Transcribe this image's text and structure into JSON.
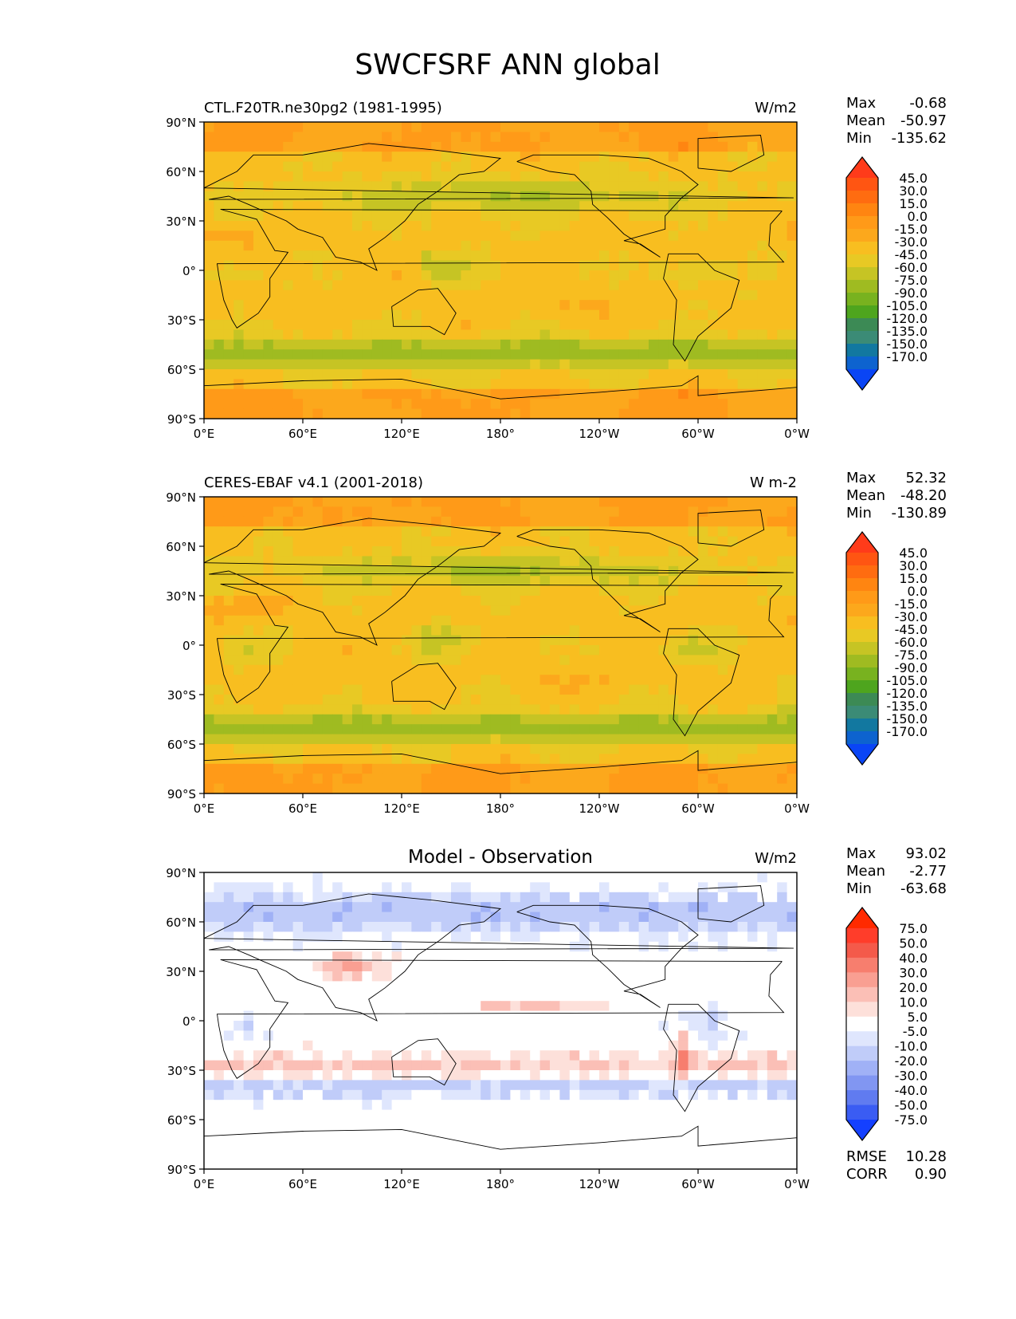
{
  "title": "SWCFSRF ANN global",
  "panels": [
    {
      "id": "model",
      "left_title": "CTL.F20TR.ne30pg2 (1981-1995)",
      "center_title": "",
      "units": "W/m2",
      "stats": [
        {
          "label": "Max",
          "value": "-0.68"
        },
        {
          "label": "Mean",
          "value": "-50.97"
        },
        {
          "label": "Min",
          "value": "-135.62"
        }
      ],
      "colorbar_levels": [
        "45.0",
        "30.0",
        "15.0",
        "0.0",
        "-15.0",
        "-30.0",
        "-45.0",
        "-60.0",
        "-75.0",
        "-90.0",
        "-105.0",
        "-120.0",
        "-135.0",
        "-150.0",
        "-170.0"
      ],
      "colorbar_colors": [
        "#ff3b1a",
        "#ff5512",
        "#ff6c10",
        "#ff8511",
        "#ff9a18",
        "#fca81c",
        "#f8be20",
        "#e8c924",
        "#c6c424",
        "#9fbb21",
        "#78b21f",
        "#4ea51e",
        "#3c8a55",
        "#3b8b76",
        "#1278a0",
        "#0d63cf",
        "#0a45f5"
      ],
      "texture": "abs"
    },
    {
      "id": "obs",
      "left_title": "CERES-EBAF v4.1 (2001-2018)",
      "center_title": "",
      "units": "W m-2",
      "stats": [
        {
          "label": "Max",
          "value": "52.32"
        },
        {
          "label": "Mean",
          "value": "-48.20"
        },
        {
          "label": "Min",
          "value": "-130.89"
        }
      ],
      "colorbar_levels": [
        "45.0",
        "30.0",
        "15.0",
        "0.0",
        "-15.0",
        "-30.0",
        "-45.0",
        "-60.0",
        "-75.0",
        "-90.0",
        "-105.0",
        "-120.0",
        "-135.0",
        "-150.0",
        "-170.0"
      ],
      "colorbar_colors": [
        "#ff3b1a",
        "#ff5512",
        "#ff6c10",
        "#ff8511",
        "#ff9a18",
        "#fca81c",
        "#f8be20",
        "#e8c924",
        "#c6c424",
        "#9fbb21",
        "#78b21f",
        "#4ea51e",
        "#3c8a55",
        "#3b8b76",
        "#1278a0",
        "#0d63cf",
        "#0a45f5"
      ],
      "texture": "abs"
    },
    {
      "id": "diff",
      "left_title": "",
      "center_title": "Model - Observation",
      "units": "W/m2",
      "stats": [
        {
          "label": "Max",
          "value": "93.02"
        },
        {
          "label": "Mean",
          "value": "-2.77"
        },
        {
          "label": "Min",
          "value": "-63.68"
        }
      ],
      "colorbar_levels": [
        "75.0",
        "50.0",
        "40.0",
        "30.0",
        "20.0",
        "10.0",
        "5.0",
        "-5.0",
        "-10.0",
        "-20.0",
        "-30.0",
        "-40.0",
        "-50.0",
        "-75.0"
      ],
      "colorbar_colors": [
        "#ff2a00",
        "#ff3d2a",
        "#f45a4a",
        "#f77e6e",
        "#f99f92",
        "#fbbfb6",
        "#fde0da",
        "#ffffff",
        "#dfe6fd",
        "#c0ccf9",
        "#a0b1f6",
        "#8196f2",
        "#607bf0",
        "#3a5cf3",
        "#1440ff"
      ],
      "texture": "diff",
      "extra_stats": [
        {
          "label": "RMSE",
          "value": "10.28"
        },
        {
          "label": "CORR",
          "value": "0.90"
        }
      ]
    }
  ],
  "axes": {
    "y_ticks": [
      "90°N",
      "60°N",
      "30°N",
      "0°",
      "30°S",
      "60°S",
      "90°S"
    ],
    "x_ticks": [
      "0°E",
      "60°E",
      "120°E",
      "180°",
      "120°W",
      "60°W",
      "0°W"
    ]
  }
}
